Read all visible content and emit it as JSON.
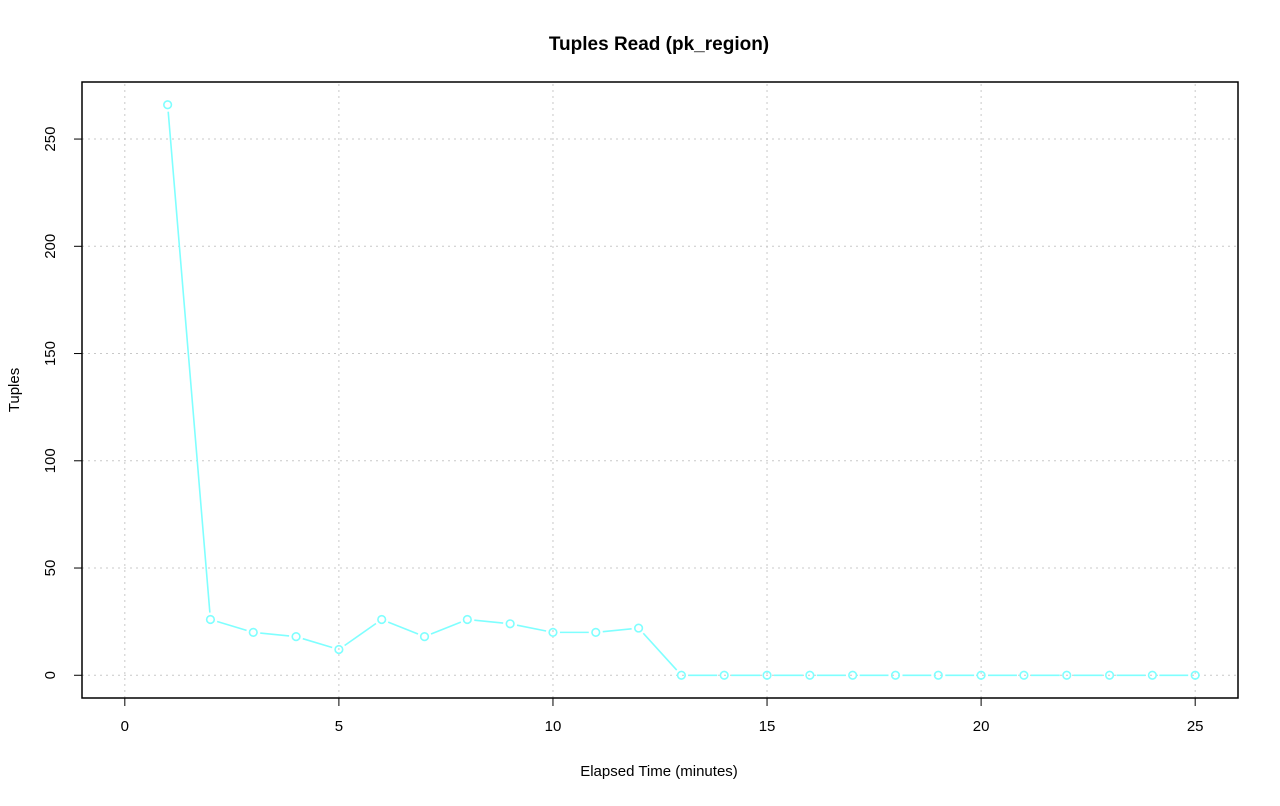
{
  "chart_data": {
    "type": "line",
    "title": "Tuples Read (pk_region)",
    "xlabel": "Elapsed Time (minutes)",
    "ylabel": "Tuples",
    "x": [
      1,
      2,
      3,
      4,
      5,
      6,
      7,
      8,
      9,
      10,
      11,
      12,
      13,
      14,
      15,
      16,
      17,
      18,
      19,
      20,
      21,
      22,
      23,
      24,
      25
    ],
    "series": [
      {
        "values": [
          266,
          26,
          20,
          18,
          12,
          26,
          18,
          26,
          24,
          20,
          20,
          22,
          0,
          0,
          0,
          0,
          0,
          0,
          0,
          0,
          0,
          0,
          0,
          0,
          0
        ],
        "color": "#7fffff"
      }
    ],
    "xlim": [
      -1,
      26
    ],
    "ylim": [
      -10.6,
      276.6
    ],
    "xticks": [
      "0",
      "5",
      "10",
      "15",
      "20",
      "25"
    ],
    "yticks": [
      "0",
      "50",
      "100",
      "150",
      "200",
      "250"
    ],
    "grid": true,
    "marker": "open-circle"
  }
}
